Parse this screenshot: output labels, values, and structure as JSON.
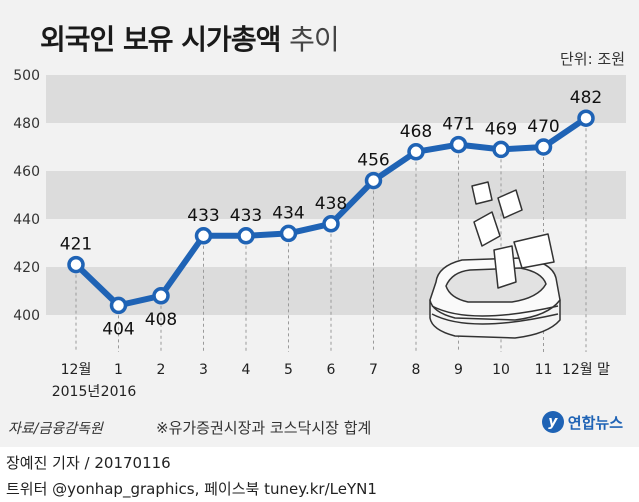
{
  "title_main": "외국인 보유 시가총액",
  "title_suffix": "추이",
  "unit": "단위: 조원",
  "source": "자료/금융감독원",
  "note": "※유가증권시장과 코스닥시장 합계",
  "logo_symbol": "y",
  "logo_text": "연합뉴스",
  "credit_author": "장예진 기자 / 20170116",
  "credit_links": "트위터 @yonhap_graphics, 페이스북 tuney.kr/LeYN1",
  "colors": {
    "line": "#1f63b5",
    "band": "#dcdcdc",
    "background": "#f2f2f2"
  },
  "chart_data": {
    "type": "line",
    "categories": [
      "12월",
      "1",
      "2",
      "3",
      "4",
      "5",
      "6",
      "7",
      "8",
      "9",
      "10",
      "11",
      "12월 말"
    ],
    "category_sublabels": [
      "2015년",
      "2016",
      "",
      "",
      "",
      "",
      "",
      "",
      "",
      "",
      "",
      "",
      ""
    ],
    "values": [
      421,
      404,
      408,
      433,
      433,
      434,
      438,
      456,
      468,
      471,
      469,
      470,
      482
    ],
    "ylim": [
      390,
      500
    ],
    "yticks": [
      400,
      420,
      440,
      460,
      480,
      500
    ],
    "title": "외국인 보유 시가총액 추이",
    "ylabel": "단위: 조원",
    "grid": "horizontal bands"
  }
}
